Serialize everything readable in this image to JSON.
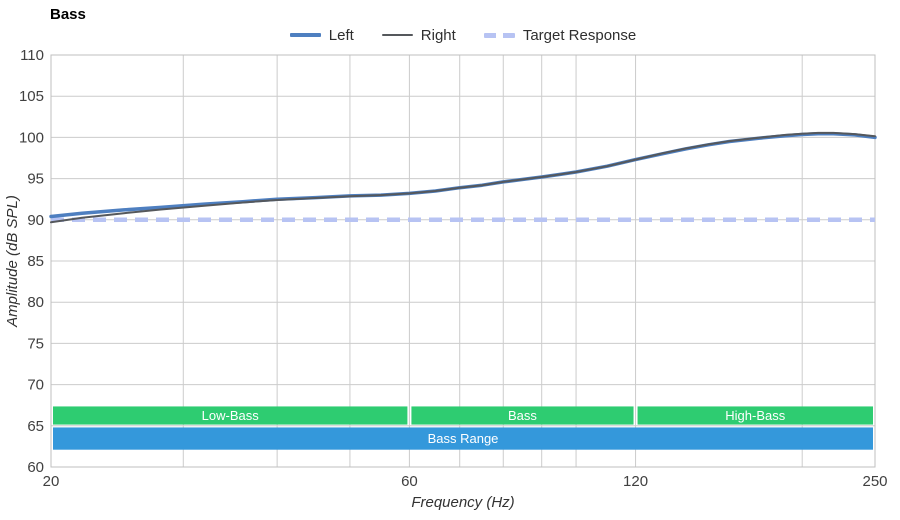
{
  "title": "Bass",
  "legend": [
    {
      "id": "left",
      "label": "Left",
      "color": "#4e7fc0",
      "style": "solid",
      "weight": 4
    },
    {
      "id": "right",
      "label": "Right",
      "color": "#55585c",
      "style": "solid",
      "weight": 2
    },
    {
      "id": "target",
      "label": "Target Response",
      "color": "#b7c3f3",
      "style": "dashed",
      "weight": 5
    }
  ],
  "axes": {
    "x": {
      "label": "Frequency (Hz)",
      "scale": "log",
      "min": 20,
      "max": 250,
      "tick_labels": [
        20,
        60,
        120,
        250
      ],
      "gridlines": [
        30,
        40,
        50,
        60,
        70,
        80,
        90,
        100,
        120,
        200
      ]
    },
    "y": {
      "label": "Amplitude (dB SPL)",
      "min": 60,
      "max": 110,
      "tick_step": 5
    }
  },
  "chart_data": {
    "type": "line",
    "title": "Bass",
    "xlabel": "Frequency (Hz)",
    "ylabel": "Amplitude (dB SPL)",
    "xlim": [
      20,
      250
    ],
    "ylim": [
      60,
      110
    ],
    "x": [
      20,
      22,
      25,
      28,
      32,
      36,
      40,
      45,
      50,
      55,
      60,
      65,
      70,
      75,
      80,
      85,
      90,
      95,
      100,
      110,
      120,
      130,
      140,
      150,
      160,
      175,
      190,
      200,
      210,
      220,
      235,
      250
    ],
    "series": [
      {
        "name": "Left",
        "color": "#4e7fc0",
        "width": 3.5,
        "values": [
          90.4,
          90.8,
          91.2,
          91.5,
          91.9,
          92.2,
          92.5,
          92.7,
          92.9,
          93.0,
          93.2,
          93.5,
          93.9,
          94.2,
          94.6,
          94.9,
          95.2,
          95.5,
          95.8,
          96.5,
          97.3,
          98.0,
          98.6,
          99.1,
          99.5,
          99.9,
          100.2,
          100.35,
          100.45,
          100.45,
          100.3,
          100.0
        ]
      },
      {
        "name": "Right",
        "color": "#55585c",
        "width": 2,
        "values": [
          89.7,
          90.25,
          90.8,
          91.25,
          91.7,
          92.1,
          92.4,
          92.65,
          92.85,
          93.0,
          93.2,
          93.5,
          93.9,
          94.2,
          94.6,
          94.9,
          95.2,
          95.5,
          95.8,
          96.5,
          97.3,
          98.05,
          98.65,
          99.15,
          99.55,
          99.95,
          100.3,
          100.45,
          100.55,
          100.55,
          100.4,
          100.15
        ]
      }
    ],
    "target": {
      "name": "Target Response",
      "value": 90,
      "color": "#b7c3f3",
      "width": 4.5,
      "dash": "13 8"
    },
    "bands": [
      {
        "label": "Low-Bass",
        "from": 20,
        "to": 60,
        "color": "#2ecc71",
        "row": "top"
      },
      {
        "label": "Bass",
        "from": 60,
        "to": 120,
        "color": "#2ecc71",
        "row": "top"
      },
      {
        "label": "High-Bass",
        "from": 120,
        "to": 250,
        "color": "#2ecc71",
        "row": "top"
      },
      {
        "label": "Bass Range",
        "from": 20,
        "to": 250,
        "color": "#3498db",
        "row": "bottom"
      }
    ],
    "band_rows": {
      "top": {
        "db_top": 67.35,
        "db_bottom": 65.15
      },
      "bottom": {
        "db_top": 64.8,
        "db_bottom": 62.1
      }
    },
    "legend_position": "top-center",
    "grid": true
  },
  "colors": {
    "grid": "#cccccc",
    "frame": "#bfbfbf",
    "tick_text": "#404040",
    "axis_title_text": "#333333",
    "band_text": "#ffffff"
  }
}
